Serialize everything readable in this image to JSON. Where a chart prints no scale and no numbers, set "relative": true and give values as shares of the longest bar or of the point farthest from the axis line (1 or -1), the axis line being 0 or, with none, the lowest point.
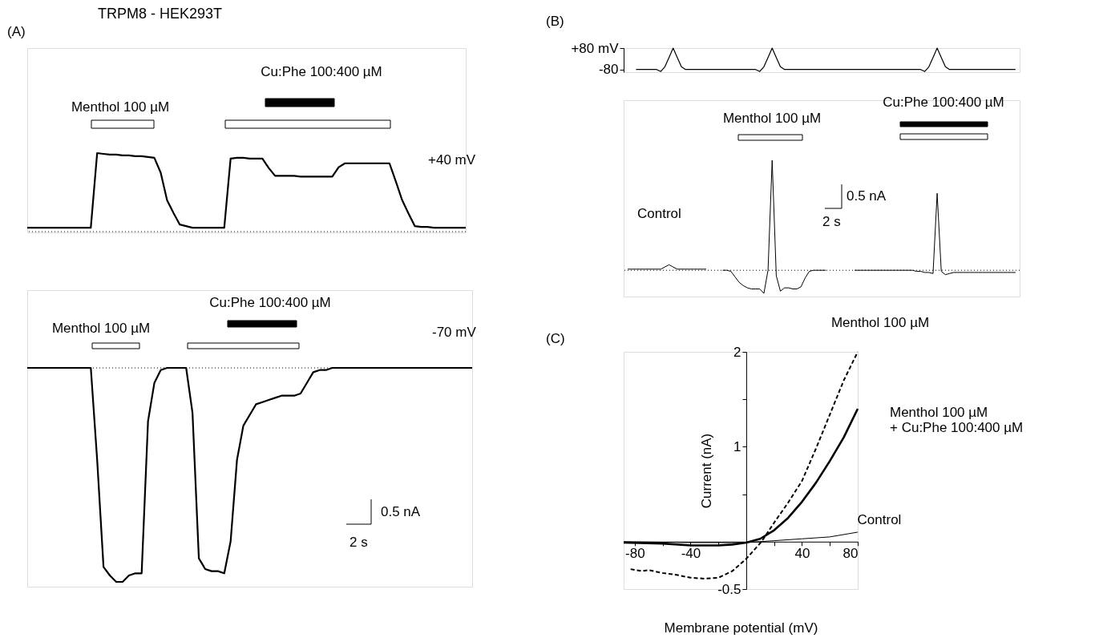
{
  "chart_data": [
    {
      "type": "line",
      "title": "TRPM8 - HEK293T",
      "relative": true,
      "tick_labels": false,
      "grid": false,
      "legend": false,
      "marker": "none",
      "line_style": "solid",
      "categories": [
        null,
        null,
        null,
        null,
        null,
        null,
        null,
        null,
        null,
        null,
        null,
        null,
        null,
        null,
        null,
        null,
        null,
        null,
        null,
        null,
        null,
        null,
        null,
        null,
        null,
        null,
        null,
        null,
        null,
        null,
        null,
        null,
        null,
        null,
        null,
        null,
        null,
        null,
        null,
        null,
        null,
        null,
        null,
        null,
        null,
        null,
        null,
        null,
        null,
        null,
        null,
        null,
        null,
        null,
        null,
        null,
        null,
        null,
        null,
        null,
        null,
        null,
        null,
        null,
        null,
        null,
        null,
        null,
        null,
        null
      ],
      "series": [
        {
          "color": "#000000",
          "values": [
            0.05,
            0.05,
            0.05,
            0.05,
            0.05,
            0.05,
            0.05,
            0.05,
            0.05,
            0.05,
            0.05,
            1.0,
            0.99,
            0.98,
            0.98,
            0.97,
            0.97,
            0.96,
            0.96,
            0.95,
            0.94,
            0.75,
            0.4,
            0.24,
            0.09,
            0.07,
            0.05,
            0.05,
            0.05,
            0.05,
            0.05,
            0.05,
            0.93,
            0.94,
            0.94,
            0.93,
            0.93,
            0.93,
            0.81,
            0.71,
            0.71,
            0.71,
            0.71,
            0.7,
            0.7,
            0.7,
            0.7,
            0.7,
            0.7,
            0.82,
            0.87,
            0.87,
            0.87,
            0.87,
            0.87,
            0.87,
            0.87,
            0.87,
            0.64,
            0.4,
            0.23,
            0.07,
            0.06,
            0.06,
            0.05,
            0.05,
            0.05,
            0.05,
            0.05,
            0.05
          ]
        }
      ],
      "ref_lines": [
        {
          "axis": "y",
          "value": 0,
          "line_style": "dotted",
          "color": "#000000"
        }
      ],
      "annotations": [
        "(A)",
        "Menthol 100 µM",
        "Cu:Phe 100:400 µM",
        "+40 mV"
      ]
    },
    {
      "type": "line",
      "relative": true,
      "tick_labels": false,
      "grid": false,
      "legend": false,
      "marker": "none",
      "line_style": "solid",
      "categories": [
        null,
        null,
        null,
        null,
        null,
        null,
        null,
        null,
        null,
        null,
        null,
        null,
        null,
        null,
        null,
        null,
        null,
        null,
        null,
        null,
        null,
        null,
        null,
        null,
        null,
        null,
        null,
        null,
        null,
        null,
        null,
        null,
        null,
        null,
        null,
        null,
        null,
        null,
        null,
        null,
        null,
        null,
        null,
        null,
        null,
        null,
        null,
        null,
        null,
        null,
        null,
        null,
        null,
        null,
        null,
        null,
        null,
        null,
        null,
        null,
        null,
        null,
        null,
        null,
        null,
        null,
        null,
        null,
        null,
        null,
        null
      ],
      "series": [
        {
          "color": "#000000",
          "values": [
            0,
            0,
            0,
            0,
            0,
            0,
            0,
            0,
            0,
            0,
            0,
            -0.43,
            -0.93,
            -0.97,
            -1,
            -1,
            -0.97,
            -0.96,
            -0.96,
            -0.25,
            -0.07,
            -0.01,
            0,
            0,
            0,
            0,
            -0.21,
            -0.89,
            -0.94,
            -0.95,
            -0.95,
            -0.96,
            -0.81,
            -0.43,
            -0.27,
            -0.22,
            -0.17,
            -0.16,
            -0.15,
            -0.14,
            -0.13,
            -0.13,
            -0.13,
            -0.12,
            -0.07,
            -0.02,
            -0.01,
            -0.01,
            0,
            0,
            0,
            0,
            0,
            0,
            0,
            0,
            0,
            0,
            0,
            0,
            0,
            0,
            0,
            0,
            0,
            0,
            0,
            0,
            0,
            0,
            0
          ]
        }
      ],
      "ref_lines": [
        {
          "axis": "y",
          "value": 0,
          "line_style": "dotted",
          "color": "#000000"
        }
      ],
      "annotations": [
        "Menthol 100 µM",
        "Cu:Phe 100:400 µM",
        "-70 mV",
        "0.5 nA",
        "2 s"
      ]
    },
    {
      "type": "line",
      "ylim": [
        -100,
        80
      ],
      "yticks": [
        {
          "value": 80,
          "label": "+80 mV"
        },
        {
          "value": -80,
          "label": "-80"
        }
      ],
      "tick_labels": "y",
      "grid": false,
      "legend": false,
      "marker": "none",
      "line_style": "solid",
      "categories": [
        null,
        null,
        null,
        null,
        null,
        null,
        null,
        null,
        null,
        null,
        null,
        null,
        null,
        null,
        null,
        null,
        null,
        null,
        null,
        null,
        null,
        null,
        null,
        null,
        null,
        null,
        null,
        null,
        null,
        null,
        null,
        null,
        null,
        null,
        null,
        null,
        null,
        null,
        null,
        null,
        null,
        null,
        null,
        null,
        null,
        null,
        null,
        null,
        null,
        null,
        null,
        null,
        null,
        null,
        null,
        null,
        null,
        null,
        null,
        null,
        null,
        null,
        null,
        null,
        null,
        null,
        null,
        null,
        null,
        null,
        null,
        null,
        null,
        null,
        null,
        null,
        null,
        null,
        null,
        null,
        null,
        null,
        null,
        null,
        null,
        null,
        null,
        null,
        null,
        null,
        null,
        null,
        null,
        null,
        null,
        null,
        null
      ],
      "series": [
        {
          "color": "#000000",
          "values": [
            null,
            null,
            null,
            -80,
            -80,
            -80,
            -80,
            -80,
            -80,
            -95,
            -60,
            10,
            80,
            10,
            -60,
            -80,
            -80,
            -80,
            -80,
            -80,
            -80,
            -80,
            -80,
            -80,
            -80,
            -80,
            -80,
            -80,
            -80,
            -80,
            -80,
            -80,
            -80,
            -95,
            -60,
            10,
            80,
            10,
            -60,
            -80,
            -80,
            -80,
            -80,
            -80,
            -80,
            -80,
            -80,
            -80,
            -80,
            -80,
            -80,
            -80,
            -80,
            -80,
            -80,
            -80,
            -80,
            -80,
            -80,
            -80,
            -80,
            -80,
            -80,
            -80,
            -80,
            -80,
            -80,
            -80,
            -80,
            -80,
            -80,
            -80,
            -80,
            -95,
            -60,
            10,
            80,
            10,
            -60,
            -80,
            -80,
            -80,
            -80,
            -80,
            -80,
            -80,
            -80,
            -80,
            -80,
            -80,
            -80,
            -80,
            -80,
            -80,
            -80,
            -80,
            null
          ]
        }
      ],
      "annotations": [
        "(B)"
      ]
    },
    {
      "type": "line",
      "relative": true,
      "tick_labels": false,
      "grid": false,
      "legend": false,
      "marker": "none",
      "line_style": "solid",
      "categories": [
        null,
        null,
        null,
        null,
        null,
        null,
        null,
        null,
        null,
        null,
        null,
        null,
        null,
        null,
        null,
        null,
        null,
        null,
        null,
        null,
        null,
        null,
        null,
        null,
        null,
        null,
        null,
        null,
        null,
        null,
        null,
        null,
        null,
        null,
        null,
        null,
        null,
        null,
        null,
        null,
        null,
        null,
        null,
        null,
        null,
        null,
        null,
        null,
        null,
        null,
        null,
        null,
        null,
        null,
        null,
        null,
        null,
        null,
        null,
        null,
        null,
        null,
        null,
        null,
        null,
        null,
        null,
        null,
        null,
        null,
        null,
        null,
        null,
        null,
        null,
        null,
        null,
        null,
        null,
        null,
        null,
        null,
        null,
        null,
        null,
        null,
        null,
        null,
        null,
        null,
        null,
        null,
        null,
        null,
        null,
        null,
        null
      ],
      "series": [
        {
          "color": "#000000",
          "values": [
            null,
            0.01,
            0.01,
            0.01,
            0.01,
            0.01,
            0.01,
            0.01,
            0.01,
            0.01,
            0.03,
            0.05,
            0.03,
            0.01,
            0.01,
            0.01,
            0.01,
            0.01,
            0.01,
            0.01,
            0.01,
            null,
            null,
            null,
            0,
            0,
            -0.01,
            -0.06,
            -0.11,
            -0.14,
            -0.16,
            -0.17,
            -0.17,
            -0.17,
            -0.21,
            0,
            1,
            -0.05,
            -0.19,
            -0.16,
            -0.16,
            -0.17,
            -0.17,
            -0.15,
            -0.07,
            -0.01,
            0,
            0,
            0,
            0,
            null,
            null,
            null,
            null,
            null,
            null,
            0,
            0,
            0,
            0,
            0,
            0,
            0,
            0,
            0,
            0,
            0,
            0,
            0,
            0,
            0,
            -0.01,
            -0.01,
            -0.02,
            -0.02,
            -0.03,
            0.7,
            -0.01,
            -0.04,
            -0.03,
            -0.02,
            -0.02,
            -0.02,
            -0.02,
            -0.02,
            -0.02,
            -0.02,
            -0.02,
            -0.02,
            -0.02,
            -0.02,
            -0.02,
            -0.02,
            -0.02,
            -0.02,
            -0.02,
            null
          ]
        }
      ],
      "ref_lines": [
        {
          "axis": "y",
          "value": 0,
          "line_style": "dotted",
          "color": "#000000"
        }
      ],
      "annotations": [
        "Menthol 100 µM",
        "Cu:Phe 100:400 µM",
        "Control",
        "0.5 nA",
        "2 s"
      ]
    },
    {
      "type": "line",
      "xlabel": "Membrane potential (mV)",
      "ylabel": "Current (nA)",
      "xlim": [
        -88,
        80
      ],
      "ylim": [
        -0.5,
        2
      ],
      "xticks": [
        -80,
        {
          "value": -60,
          "label": null
        },
        -40,
        {
          "value": -20,
          "label": null
        },
        {
          "value": 20,
          "label": null
        },
        40,
        {
          "value": 60,
          "label": null
        },
        80
      ],
      "yticks": [
        -0.5,
        {
          "value": 0.5,
          "label": null
        },
        1,
        {
          "value": 1.5,
          "label": null
        },
        2
      ],
      "grid": false,
      "legend": false,
      "marker": "none",
      "series": [
        {
          "name": "Control",
          "color": "#000000",
          "line_style": "solid",
          "x": [
            -88,
            -40,
            0,
            20,
            40,
            60,
            80
          ],
          "values": [
            0,
            -0.01,
            -0.01,
            0.01,
            0.03,
            0.05,
            0.1
          ]
        },
        {
          "name": "Menthol 100 µM",
          "color": "#000000",
          "line_style": "dashed",
          "x": [
            -83,
            -75,
            -70,
            -60,
            -50,
            -40,
            -30,
            -20,
            -10,
            0,
            11,
            20,
            30,
            40,
            50,
            60,
            70,
            80
          ],
          "values": [
            -0.29,
            -0.31,
            -0.3,
            -0.33,
            -0.35,
            -0.38,
            -0.39,
            -0.38,
            -0.31,
            -0.18,
            0,
            0.2,
            0.41,
            0.64,
            0.98,
            1.34,
            1.7,
            2.0
          ]
        },
        {
          "name": "Menthol 100 µM\n+ Cu:Phe 100:400 µM",
          "color": "#000000",
          "line_style": "solid",
          "x": [
            -88,
            -60,
            -40,
            -20,
            -10,
            0,
            10,
            20,
            30,
            40,
            50,
            60,
            70,
            80
          ],
          "values": [
            -0.01,
            -0.02,
            -0.04,
            -0.04,
            -0.03,
            -0.01,
            0.03,
            0.12,
            0.25,
            0.42,
            0.62,
            0.85,
            1.1,
            1.4
          ]
        }
      ],
      "annotations": [
        "(C)"
      ]
    }
  ]
}
